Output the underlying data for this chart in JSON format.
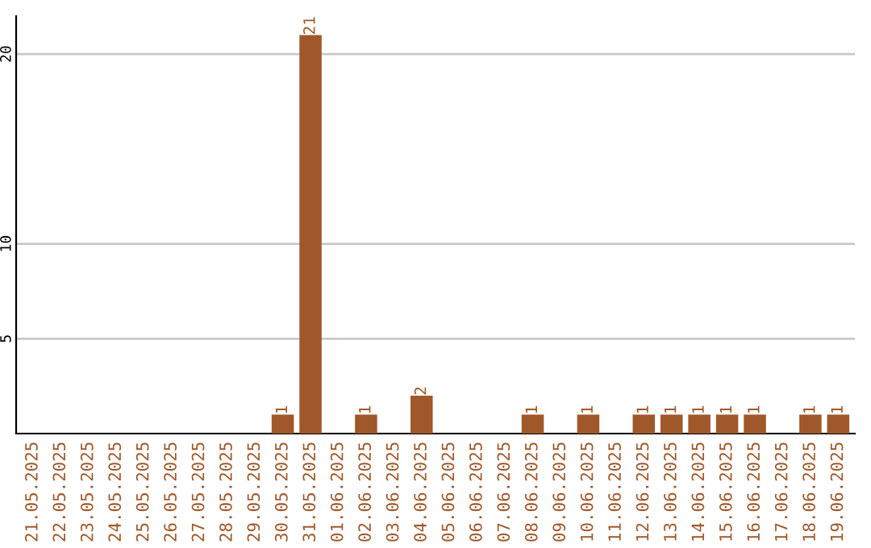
{
  "chart_data": {
    "type": "bar",
    "categories": [
      "21.05.2025",
      "22.05.2025",
      "23.05.2025",
      "24.05.2025",
      "25.05.2025",
      "26.05.2025",
      "27.05.2025",
      "28.05.2025",
      "29.05.2025",
      "30.05.2025",
      "31.05.2025",
      "01.06.2025",
      "02.06.2025",
      "03.06.2025",
      "04.06.2025",
      "05.06.2025",
      "06.06.2025",
      "07.06.2025",
      "08.06.2025",
      "09.06.2025",
      "10.06.2025",
      "11.06.2025",
      "12.06.2025",
      "13.06.2025",
      "14.06.2025",
      "15.06.2025",
      "16.06.2025",
      "17.06.2025",
      "18.06.2025",
      "19.06.2025"
    ],
    "values": [
      0,
      0,
      0,
      0,
      0,
      0,
      0,
      0,
      0,
      1,
      21,
      0,
      1,
      0,
      2,
      0,
      0,
      0,
      1,
      0,
      1,
      0,
      1,
      1,
      1,
      1,
      1,
      0,
      1,
      1
    ],
    "value_labels": [
      null,
      null,
      null,
      null,
      null,
      null,
      null,
      null,
      null,
      "1",
      "21",
      null,
      "1",
      null,
      "2",
      null,
      null,
      null,
      "1",
      null,
      "1",
      null,
      "1",
      "1",
      "1",
      "1",
      "1",
      null,
      "1",
      "1"
    ],
    "color": "#a0582a",
    "ylim": [
      0,
      22
    ],
    "yticks": [
      5,
      10,
      20
    ],
    "grid": "y"
  }
}
